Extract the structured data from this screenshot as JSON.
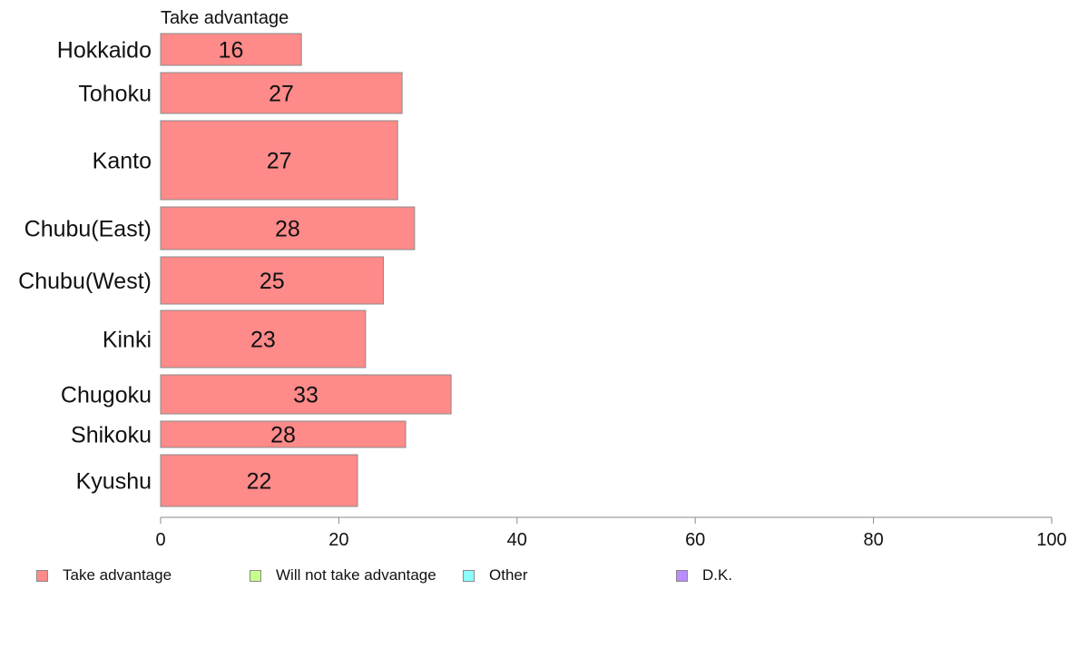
{
  "chart_data": {
    "type": "bar",
    "orientation": "horizontal",
    "panel_title": "Take advantage",
    "categories": [
      "Hokkaido",
      "Tohoku",
      "Kanto",
      "Chubu(East)",
      "Chubu(West)",
      "Kinki",
      "Chugoku",
      "Shikoku",
      "Kyushu"
    ],
    "series": [
      {
        "name": "Take advantage",
        "values": [
          15.8,
          27.1,
          26.6,
          28.5,
          25.0,
          23.0,
          32.6,
          27.5,
          22.1
        ],
        "labels": [
          "16",
          "27",
          "27",
          "28",
          "25",
          "23",
          "33",
          "28",
          "22"
        ]
      }
    ],
    "xlim": [
      0,
      100
    ],
    "xticks": [
      0,
      20,
      40,
      60,
      80,
      100
    ],
    "xtick_labels": [
      "0",
      "20",
      "40",
      "60",
      "80",
      "100"
    ],
    "grid": false,
    "legend_position": "bottom",
    "legend": [
      {
        "label": "Take advantage",
        "color": "#ff8a8a"
      },
      {
        "label": "Will not take advantage",
        "color": "#c8ff8c"
      },
      {
        "label": "Other",
        "color": "#8cfffb"
      },
      {
        "label": "D.K.",
        "color": "#b98cff"
      }
    ],
    "bar_color": "#ff8a8a",
    "bar_stroke": "#8a8a8a"
  }
}
